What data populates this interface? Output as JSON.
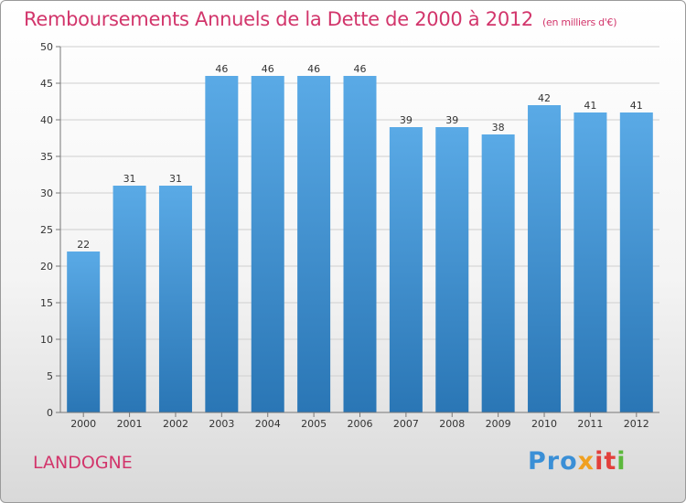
{
  "title": "Remboursements Annuels de la Dette de 2000 à 2012",
  "unit_note": "(en milliers d'€)",
  "commune": "LANDOGNE",
  "logo": {
    "text": "Proxiti",
    "parts": [
      "Pro",
      "x",
      "it",
      "i"
    ]
  },
  "colors": {
    "accent": "#d2356b",
    "bar_top": "#5aaae6",
    "bar_bottom": "#2a76b5",
    "grid": "#cfcfcf"
  },
  "chart_data": {
    "type": "bar",
    "categories": [
      "2000",
      "2001",
      "2002",
      "2003",
      "2004",
      "2005",
      "2006",
      "2007",
      "2008",
      "2009",
      "2010",
      "2011",
      "2012"
    ],
    "values": [
      22,
      31,
      31,
      46,
      46,
      46,
      46,
      39,
      39,
      38,
      42,
      41,
      41
    ],
    "ylim": [
      0,
      50
    ],
    "yticks": [
      0,
      5,
      10,
      15,
      20,
      25,
      30,
      35,
      40,
      45,
      50
    ],
    "grid": true,
    "title": "Remboursements Annuels de la Dette de 2000 à 2012",
    "xlabel": "",
    "ylabel": ""
  }
}
